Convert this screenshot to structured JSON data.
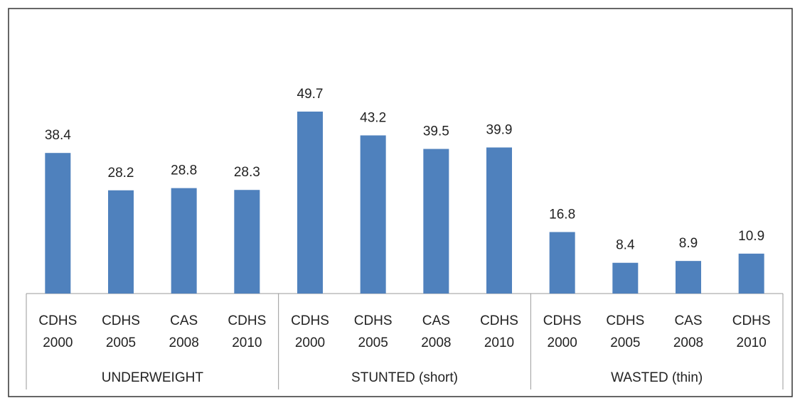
{
  "chart_data": {
    "type": "bar",
    "groups": [
      "UNDERWEIGHT",
      "STUNTED (short)",
      "WASTED (thin)"
    ],
    "categories": [
      [
        "CDHS",
        "2000"
      ],
      [
        "CDHS",
        "2005"
      ],
      [
        "CAS",
        "2008"
      ],
      [
        "CDHS",
        "2010"
      ],
      [
        "CDHS",
        "2000"
      ],
      [
        "CDHS",
        "2005"
      ],
      [
        "CAS",
        "2008"
      ],
      [
        "CDHS",
        "2010"
      ],
      [
        "CDHS",
        "2000"
      ],
      [
        "CDHS",
        "2005"
      ],
      [
        "CAS",
        "2008"
      ],
      [
        "CDHS",
        "2010"
      ]
    ],
    "values": [
      38.4,
      28.2,
      28.8,
      28.3,
      49.7,
      43.2,
      39.5,
      39.9,
      16.8,
      8.4,
      8.9,
      10.9
    ],
    "color": "#4f81bd"
  }
}
